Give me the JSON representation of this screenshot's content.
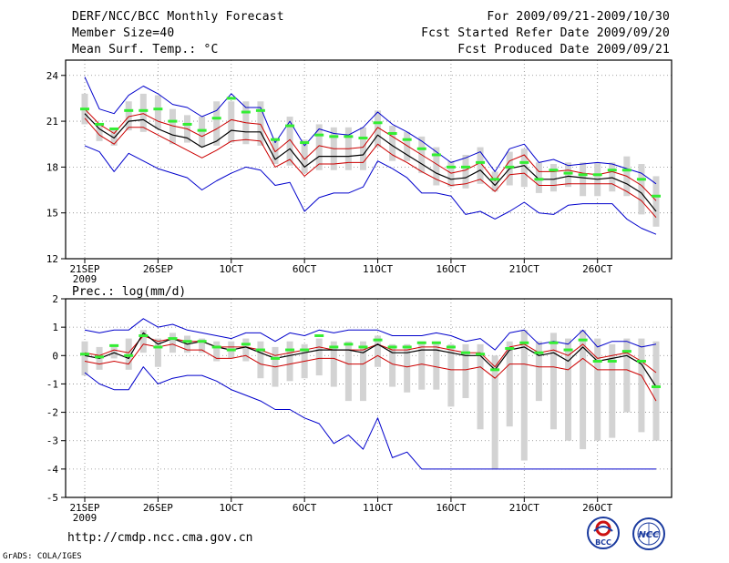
{
  "header": {
    "title": "DERF/NCC/BCC Monthly Forecast",
    "member_size": "Member Size=40",
    "variable": "Mean Surf. Temp.: °C",
    "period": "For 2009/09/21-2009/10/30",
    "refer_date": "Fcst Started Refer Date 2009/09/20",
    "produced_date": "Fcst Produced Date 2009/09/21"
  },
  "footer": {
    "url": "http://cmdp.ncc.cma.gov.cn",
    "grads": "GrADS: COLA/IGES",
    "logo_left_text": "BCC",
    "logo_right_text": "NCC"
  },
  "colors": {
    "envelope": "#0000cc",
    "spread": "#cc0000",
    "mean": "#000000",
    "box": "#d3d3d3",
    "member_mark": "#33ee33",
    "grid": "#888888"
  },
  "chart_data": [
    {
      "type": "line",
      "title": "Mean Surf. Temp.: °C",
      "x_ticks": [
        {
          "label": "21SEP",
          "index": 0,
          "sub": "2009"
        },
        {
          "label": "26SEP",
          "index": 5
        },
        {
          "label": "1OCT",
          "index": 10
        },
        {
          "label": "6OCT",
          "index": 15
        },
        {
          "label": "11OCT",
          "index": 20
        },
        {
          "label": "16OCT",
          "index": 25
        },
        {
          "label": "21OCT",
          "index": 30
        },
        {
          "label": "26OCT",
          "index": 35
        }
      ],
      "ylim": [
        12,
        25
      ],
      "yticks": [
        12,
        15,
        18,
        21,
        24
      ],
      "series": [
        {
          "name": "max",
          "values": [
            23.9,
            21.8,
            21.5,
            22.7,
            23.3,
            22.8,
            22.1,
            21.9,
            21.3,
            21.7,
            22.8,
            21.9,
            21.9,
            19.6,
            21.0,
            19.4,
            20.5,
            20.2,
            20.1,
            20.6,
            21.6,
            20.8,
            20.3,
            19.7,
            19.0,
            18.3,
            18.6,
            19.0,
            17.7,
            19.2,
            19.5,
            18.3,
            18.5,
            18.1,
            18.2,
            18.3,
            18.2,
            17.9,
            17.6,
            16.9
          ]
        },
        {
          "name": "upper",
          "values": [
            21.8,
            20.8,
            20.2,
            21.3,
            21.5,
            21.0,
            20.7,
            20.5,
            20.0,
            20.5,
            21.1,
            20.9,
            20.8,
            19.0,
            19.8,
            18.5,
            19.4,
            19.2,
            19.2,
            19.3,
            20.6,
            20.0,
            19.4,
            18.8,
            18.2,
            17.6,
            17.8,
            18.3,
            17.1,
            18.4,
            18.8,
            17.7,
            17.7,
            17.8,
            17.6,
            17.5,
            17.7,
            17.4,
            16.8,
            15.8
          ]
        },
        {
          "name": "mean",
          "values": [
            21.5,
            20.5,
            19.9,
            21.0,
            21.1,
            20.5,
            20.1,
            19.9,
            19.3,
            19.7,
            20.4,
            20.3,
            20.3,
            18.5,
            19.2,
            18.0,
            18.7,
            18.7,
            18.7,
            18.8,
            20.1,
            19.4,
            18.8,
            18.2,
            17.6,
            17.2,
            17.3,
            17.8,
            16.8,
            17.9,
            18.1,
            17.2,
            17.2,
            17.4,
            17.3,
            17.2,
            17.3,
            16.9,
            16.3,
            15.1
          ]
        },
        {
          "name": "lower",
          "values": [
            21.2,
            20.1,
            19.5,
            20.6,
            20.6,
            20.1,
            19.6,
            19.1,
            18.6,
            19.1,
            19.7,
            19.8,
            19.7,
            18.0,
            18.5,
            17.4,
            18.2,
            18.2,
            18.3,
            18.3,
            19.5,
            18.8,
            18.3,
            17.7,
            17.2,
            16.8,
            16.9,
            17.2,
            16.4,
            17.5,
            17.6,
            16.8,
            16.8,
            16.9,
            16.9,
            16.9,
            16.9,
            16.4,
            15.8,
            14.7
          ]
        },
        {
          "name": "min",
          "values": [
            19.4,
            19.0,
            17.7,
            18.9,
            18.4,
            17.9,
            17.6,
            17.3,
            16.5,
            17.1,
            17.6,
            18.0,
            17.8,
            16.8,
            17.0,
            15.1,
            16.0,
            16.3,
            16.3,
            16.7,
            18.4,
            17.9,
            17.3,
            16.3,
            16.3,
            16.1,
            14.9,
            15.1,
            14.6,
            15.1,
            15.7,
            15.0,
            14.9,
            15.5,
            15.6,
            15.6,
            15.6,
            14.6,
            14.0,
            13.6
          ]
        },
        {
          "name": "member",
          "values": [
            21.8,
            20.8,
            20.5,
            21.7,
            21.7,
            21.8,
            21.0,
            20.8,
            20.4,
            21.2,
            22.5,
            21.6,
            21.7,
            19.8,
            20.7,
            19.6,
            20.1,
            20.0,
            20.0,
            19.9,
            20.9,
            20.2,
            19.8,
            19.2,
            18.8,
            18.0,
            18.0,
            18.3,
            17.2,
            18.0,
            18.3,
            17.2,
            17.8,
            17.6,
            17.5,
            17.5,
            17.8,
            17.8,
            17.2,
            16.1
          ]
        },
        {
          "name": "box_high",
          "values": [
            22.8,
            20.8,
            20.5,
            22.3,
            22.8,
            22.7,
            21.8,
            21.4,
            21.3,
            22.3,
            22.3,
            22.3,
            22.3,
            19.9,
            21.3,
            19.8,
            20.8,
            20.6,
            20.6,
            20.6,
            21.7,
            20.7,
            20.3,
            20.0,
            19.3,
            18.4,
            18.8,
            19.3,
            17.7,
            19.0,
            19.2,
            18.3,
            18.2,
            18.3,
            18.3,
            18.3,
            18.3,
            18.7,
            18.2,
            17.4
          ]
        },
        {
          "name": "box_low",
          "values": [
            20.8,
            19.7,
            19.4,
            20.4,
            20.3,
            20.5,
            19.5,
            19.6,
            19.3,
            19.4,
            19.6,
            19.5,
            19.4,
            18.2,
            18.1,
            17.6,
            17.8,
            17.8,
            17.8,
            17.8,
            19.3,
            18.4,
            18.4,
            17.6,
            16.8,
            16.7,
            16.6,
            16.9,
            16.4,
            16.8,
            16.7,
            16.3,
            16.4,
            16.7,
            16.1,
            16.1,
            16.4,
            16.1,
            14.9,
            14.1
          ]
        }
      ]
    },
    {
      "type": "line",
      "title": "Prec.: log(mm/d)",
      "x_ticks": [
        {
          "label": "21SEP",
          "index": 0,
          "sub": "2009"
        },
        {
          "label": "26SEP",
          "index": 5
        },
        {
          "label": "1OCT",
          "index": 10
        },
        {
          "label": "6OCT",
          "index": 15
        },
        {
          "label": "11OCT",
          "index": 20
        },
        {
          "label": "16OCT",
          "index": 25
        },
        {
          "label": "21OCT",
          "index": 30
        },
        {
          "label": "26OCT",
          "index": 35
        }
      ],
      "ylim": [
        -5,
        2
      ],
      "yticks": [
        -5,
        -4,
        -3,
        -2,
        -1,
        0,
        1,
        2
      ],
      "series": [
        {
          "name": "max",
          "values": [
            0.9,
            0.8,
            0.9,
            0.9,
            1.3,
            1.0,
            1.1,
            0.9,
            0.8,
            0.7,
            0.6,
            0.8,
            0.8,
            0.5,
            0.8,
            0.7,
            0.9,
            0.8,
            0.9,
            0.9,
            0.9,
            0.7,
            0.7,
            0.7,
            0.8,
            0.7,
            0.5,
            0.6,
            0.2,
            0.8,
            0.9,
            0.4,
            0.5,
            0.4,
            0.9,
            0.3,
            0.5,
            0.5,
            0.3,
            0.4
          ]
        },
        {
          "name": "upper",
          "values": [
            0.1,
            0.0,
            0.2,
            0.1,
            0.7,
            0.5,
            0.6,
            0.5,
            0.5,
            0.3,
            0.3,
            0.3,
            0.2,
            0.0,
            0.1,
            0.2,
            0.3,
            0.2,
            0.2,
            0.2,
            0.4,
            0.2,
            0.2,
            0.3,
            0.3,
            0.2,
            0.1,
            0.1,
            -0.4,
            0.3,
            0.4,
            0.1,
            0.2,
            0.0,
            0.4,
            -0.1,
            0.0,
            0.1,
            -0.2,
            -0.6
          ]
        },
        {
          "name": "mean",
          "values": [
            0.0,
            -0.1,
            0.1,
            -0.1,
            0.8,
            0.4,
            0.6,
            0.4,
            0.5,
            0.3,
            0.2,
            0.3,
            0.1,
            -0.1,
            0.0,
            0.1,
            0.2,
            0.2,
            0.2,
            0.1,
            0.4,
            0.1,
            0.1,
            0.2,
            0.2,
            0.1,
            0.0,
            0.0,
            -0.5,
            0.2,
            0.3,
            0.0,
            0.1,
            -0.2,
            0.3,
            -0.2,
            -0.1,
            0.0,
            -0.3,
            -1.1
          ]
        },
        {
          "name": "lower",
          "values": [
            -0.2,
            -0.3,
            -0.2,
            -0.3,
            0.4,
            0.3,
            0.4,
            0.2,
            0.2,
            -0.1,
            -0.1,
            0.0,
            -0.3,
            -0.4,
            -0.3,
            -0.2,
            -0.1,
            -0.1,
            -0.3,
            -0.3,
            0.0,
            -0.3,
            -0.4,
            -0.3,
            -0.4,
            -0.5,
            -0.5,
            -0.4,
            -0.8,
            -0.3,
            -0.3,
            -0.4,
            -0.4,
            -0.5,
            -0.1,
            -0.5,
            -0.5,
            -0.5,
            -0.7,
            -1.6
          ]
        },
        {
          "name": "min",
          "values": [
            -0.6,
            -1.0,
            -1.2,
            -1.2,
            -0.4,
            -1.0,
            -0.8,
            -0.7,
            -0.7,
            -0.9,
            -1.2,
            -1.4,
            -1.6,
            -1.9,
            -1.9,
            -2.2,
            -2.4,
            -3.1,
            -2.8,
            -3.3,
            -2.2,
            -3.6,
            -3.4,
            -4.0,
            -4.0,
            -4.0,
            -4.0,
            -4.0,
            -4.0,
            -4.0,
            -4.0,
            -4.0,
            -4.0,
            -4.0,
            -4.0,
            -4.0,
            -4.0,
            -4.0,
            -4.0,
            -4.0
          ]
        },
        {
          "name": "member",
          "values": [
            0.05,
            -0.05,
            0.35,
            0.0,
            0.7,
            0.3,
            0.6,
            0.5,
            0.5,
            0.3,
            0.2,
            0.4,
            0.2,
            -0.1,
            0.2,
            0.2,
            0.7,
            0.3,
            0.4,
            0.3,
            0.55,
            0.3,
            0.3,
            0.45,
            0.45,
            0.3,
            0.1,
            0.05,
            -0.5,
            0.25,
            0.45,
            0.1,
            0.45,
            0.2,
            0.55,
            -0.2,
            -0.2,
            0.15,
            -0.2,
            -1.1
          ]
        },
        {
          "name": "box_high",
          "values": [
            0.5,
            0.3,
            0.4,
            0.6,
            0.9,
            0.6,
            0.8,
            0.7,
            0.6,
            0.5,
            0.5,
            0.6,
            0.5,
            0.3,
            0.5,
            0.4,
            0.6,
            0.5,
            0.5,
            0.5,
            0.7,
            0.4,
            0.4,
            0.5,
            0.5,
            0.4,
            0.4,
            0.4,
            0.0,
            0.5,
            0.9,
            0.5,
            0.8,
            0.6,
            0.9,
            0.6,
            0.4,
            0.6,
            0.6,
            0.5
          ]
        },
        {
          "name": "box_low",
          "values": [
            -0.7,
            -0.5,
            -0.1,
            -0.5,
            0.1,
            -0.4,
            0.1,
            0.1,
            0.1,
            -0.2,
            -0.1,
            -0.2,
            -0.8,
            -1.1,
            -0.9,
            -0.8,
            -0.7,
            -1.1,
            -1.6,
            -1.6,
            -0.4,
            -1.1,
            -1.3,
            -1.2,
            -1.2,
            -1.8,
            -1.5,
            -2.6,
            -4.0,
            -2.5,
            -3.7,
            -1.6,
            -2.6,
            -3.0,
            -3.3,
            -3.0,
            -2.9,
            -2.0,
            -2.7,
            -3.0
          ]
        }
      ]
    }
  ]
}
